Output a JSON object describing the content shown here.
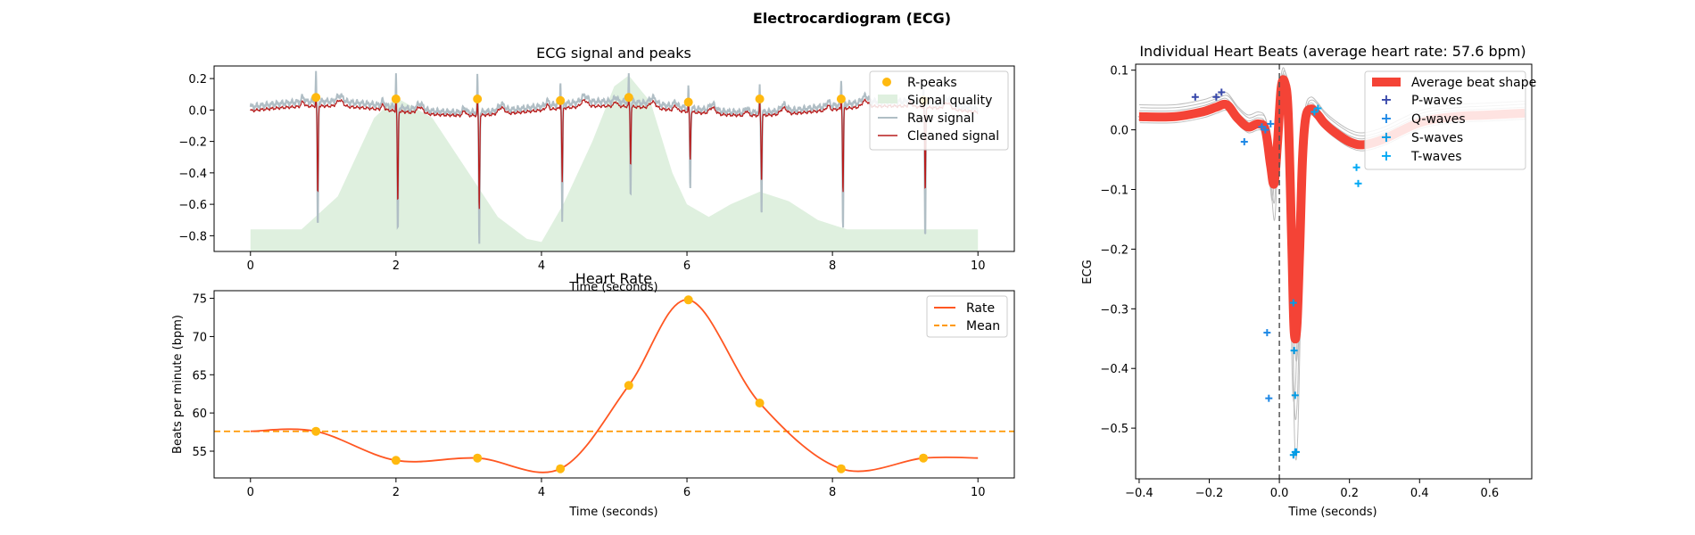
{
  "figure": {
    "suptitle": "Electrocardiogram (ECG)"
  },
  "colors": {
    "r_peaks": "#FFB90F",
    "signal_quality": "#DFF0DF",
    "raw_signal": "#B0BEC5",
    "cleaned_signal": "#B71C1C",
    "rate": "#FF5722",
    "mean": "#FF9800",
    "average_beat": "#F44336",
    "individual_beats": "#BDBDBD",
    "p_waves": "#3949AB",
    "q_waves": "#1E88E5",
    "s_waves": "#039BE5",
    "t_waves": "#03A9F4",
    "zero_line": "#555555"
  },
  "chart_data": [
    {
      "id": "ecg",
      "type": "line",
      "title": "ECG signal and peaks",
      "xlabel": "Time (seconds)",
      "ylabel": "",
      "xlim": [
        -0.5,
        10.5
      ],
      "ylim": [
        -0.9,
        0.28
      ],
      "xticks": [
        0,
        2,
        4,
        6,
        8,
        10
      ],
      "yticks": [
        -0.8,
        -0.6,
        -0.4,
        -0.2,
        0.0,
        0.2
      ],
      "ytick_labels": [
        "−0.8",
        "−0.6",
        "−0.4",
        "−0.2",
        "0.0",
        "0.2"
      ],
      "legend": [
        "R-peaks",
        "Signal quality",
        "Raw signal",
        "Cleaned signal"
      ],
      "legend_loc": "upper right",
      "r_peaks_x": [
        0.9,
        2.0,
        3.12,
        4.26,
        5.2,
        6.02,
        7.0,
        8.12,
        9.25
      ],
      "r_peaks_y": [
        0.08,
        0.07,
        0.07,
        0.06,
        0.08,
        0.05,
        0.07,
        0.07,
        0.06
      ],
      "raw_peak_top": [
        0.24,
        0.23,
        0.23,
        0.19,
        0.23,
        0.14,
        0.16,
        0.19,
        0.18
      ],
      "raw_peak_bottom": [
        -0.8,
        -0.79,
        -0.82,
        -0.73,
        -0.57,
        -0.5,
        -0.63,
        -0.78,
        -0.86
      ],
      "clean_peak_bottom": [
        -0.55,
        -0.57,
        -0.58,
        -0.45,
        -0.35,
        -0.29,
        -0.4,
        -0.52,
        -0.52
      ],
      "quality": {
        "x": [
          0.0,
          0.7,
          1.2,
          1.7,
          2.0,
          2.5,
          3.0,
          3.4,
          3.8,
          4.0,
          4.3,
          4.7,
          5.0,
          5.2,
          5.5,
          5.8,
          6.0,
          6.3,
          6.6,
          7.0,
          7.4,
          7.8,
          8.2,
          8.6,
          9.0,
          10.0
        ],
        "y": [
          -0.76,
          -0.76,
          -0.55,
          -0.05,
          0.08,
          -0.05,
          -0.4,
          -0.68,
          -0.82,
          -0.84,
          -0.6,
          -0.2,
          0.15,
          0.22,
          0.05,
          -0.4,
          -0.6,
          -0.68,
          -0.6,
          -0.52,
          -0.58,
          -0.7,
          -0.76,
          -0.76,
          -0.76,
          -0.76
        ]
      }
    },
    {
      "id": "rate",
      "type": "line",
      "title": "Heart Rate",
      "xlabel": "Time (seconds)",
      "ylabel": "Beats per minute (bpm)",
      "xlim": [
        -0.5,
        10.5
      ],
      "ylim": [
        51.5,
        76
      ],
      "xticks": [
        0,
        2,
        4,
        6,
        8,
        10
      ],
      "yticks": [
        55,
        60,
        65,
        70,
        75
      ],
      "legend": [
        "Rate",
        "Mean"
      ],
      "legend_loc": "upper right",
      "mean": 57.6,
      "points_x": [
        0.9,
        2.0,
        3.12,
        4.26,
        5.2,
        6.02,
        7.0,
        8.12,
        9.25
      ],
      "points_y": [
        57.6,
        53.8,
        54.1,
        52.7,
        63.6,
        74.8,
        61.3,
        52.7,
        54.1
      ],
      "start": 57.6,
      "end": 54.1
    },
    {
      "id": "beats",
      "type": "line",
      "title": "Individual Heart Beats (average heart rate: 57.6 bpm)",
      "xlabel": "Time (seconds)",
      "ylabel": "ECG",
      "xlim": [
        -0.41,
        0.72
      ],
      "ylim": [
        -0.585,
        0.11
      ],
      "xticks": [
        -0.4,
        -0.2,
        0.0,
        0.2,
        0.4,
        0.6
      ],
      "xtick_labels": [
        "−0.4",
        "−0.2",
        "0.0",
        "0.2",
        "0.4",
        "0.6"
      ],
      "yticks": [
        -0.5,
        -0.4,
        -0.3,
        -0.2,
        -0.1,
        0.0,
        0.1
      ],
      "ytick_labels": [
        "−0.5",
        "−0.4",
        "−0.3",
        "−0.2",
        "−0.1",
        "0.0",
        "0.1"
      ],
      "legend": [
        "Average beat shape",
        "P-waves",
        "Q-waves",
        "S-waves",
        "T-waves"
      ],
      "legend_loc": "upper right",
      "average": {
        "x": [
          -0.4,
          -0.3,
          -0.22,
          -0.18,
          -0.15,
          -0.12,
          -0.09,
          -0.06,
          -0.04,
          -0.025,
          -0.015,
          -0.005,
          0.005,
          0.015,
          0.025,
          0.035,
          0.042,
          0.05,
          0.058,
          0.066,
          0.075,
          0.09,
          0.11,
          0.13,
          0.16,
          0.2,
          0.24,
          0.3,
          0.4,
          0.5,
          0.6,
          0.7
        ],
        "y": [
          0.022,
          0.022,
          0.03,
          0.038,
          0.042,
          0.02,
          0.005,
          0.01,
          0.0,
          -0.06,
          -0.09,
          -0.02,
          0.07,
          0.08,
          0.03,
          -0.18,
          -0.335,
          -0.33,
          -0.2,
          -0.05,
          0.02,
          0.035,
          0.025,
          0.01,
          -0.005,
          -0.02,
          -0.025,
          -0.015,
          0.012,
          0.022,
          0.025,
          0.028
        ]
      },
      "p_waves_x": [
        -0.24,
        -0.18,
        -0.165
      ],
      "p_waves_y": [
        0.055,
        0.055,
        0.063
      ],
      "q_waves_x": [
        -0.1,
        -0.035,
        -0.03,
        -0.05,
        -0.04,
        -0.025
      ],
      "q_waves_y": [
        -0.02,
        -0.34,
        -0.45,
        0.005,
        0.0,
        0.01
      ],
      "s_waves_x": [
        0.04,
        0.042,
        0.045,
        0.048,
        0.04,
        0.045
      ],
      "s_waves_y": [
        -0.29,
        -0.37,
        -0.445,
        -0.54,
        -0.545,
        -0.54
      ],
      "t_waves_x": [
        0.1,
        0.11,
        0.22,
        0.225
      ],
      "t_waves_y": [
        0.03,
        0.036,
        -0.063,
        -0.09
      ]
    }
  ]
}
